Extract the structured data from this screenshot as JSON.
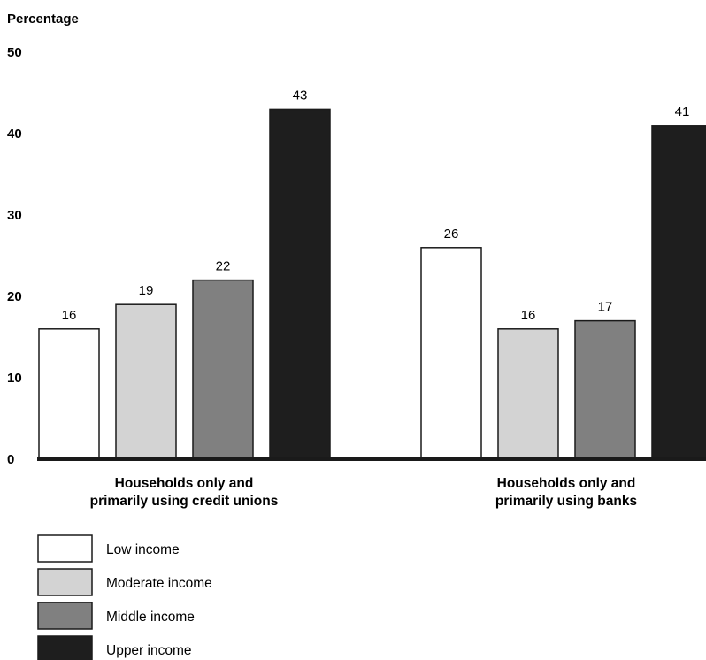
{
  "chart_data": {
    "type": "bar",
    "ylabel": "Percentage",
    "ylim": [
      0,
      50
    ],
    "yticks": [
      "0",
      "10",
      "20",
      "30",
      "40",
      "50"
    ],
    "categories": [
      [
        "Households only and",
        "primarily using credit unions"
      ],
      [
        "Households only and",
        "primarily using banks"
      ]
    ],
    "series": [
      {
        "name": "Low income",
        "values": [
          16,
          26
        ],
        "color": "#ffffff"
      },
      {
        "name": "Moderate income",
        "values": [
          19,
          16
        ],
        "color": "#d3d3d3"
      },
      {
        "name": "Middle income",
        "values": [
          22,
          17
        ],
        "color": "#808080"
      },
      {
        "name": "Upper income",
        "values": [
          43,
          41
        ],
        "color": "#1e1e1e"
      }
    ],
    "legend_position": "bottom-left",
    "grid": false
  }
}
